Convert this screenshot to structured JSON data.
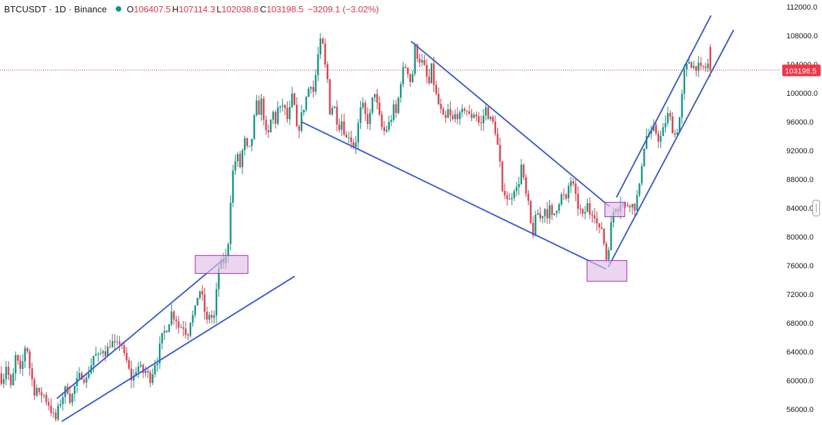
{
  "legend": {
    "symbol": "BTCUSDT",
    "interval": "1D",
    "exchange": "Binance",
    "title": "BTCUSDT · 1D · Binance",
    "open_label": "O",
    "open": "106407.5",
    "high_label": "H",
    "high": "107114.3",
    "low_label": "L",
    "low": "102038.8",
    "close_label": "C",
    "close": "103198.5",
    "change": "−3209.1 (−3.02%)"
  },
  "colors": {
    "up": "#089981",
    "down": "#f23645",
    "trendline": "#3a5bd9",
    "box_fill": "#e1bee7",
    "box_stroke": "#9c27b0",
    "grid": "#f0f3fa",
    "axis_text": "#131722",
    "price_label_bg": "#f23645"
  },
  "chart_data": {
    "type": "candlestick",
    "title": "BTCUSDT · 1D · Binance",
    "y_axis": {
      "position": "right",
      "ylim": [
        54000,
        113000
      ],
      "ticks": [
        "56000.0",
        "60000.0",
        "64000.0",
        "68000.0",
        "72000.0",
        "76000.0",
        "80000.0",
        "84000.0",
        "88000.0",
        "92000.0",
        "96000.0",
        "100000.0",
        "104000.0",
        "108000.0",
        "112000.0"
      ]
    },
    "last_price": "103198.5",
    "last_price_line": 103198.5,
    "grid": false,
    "price_path": [
      [
        0,
        61000
      ],
      [
        4,
        59500
      ],
      [
        8,
        62500
      ],
      [
        12,
        61000
      ],
      [
        15,
        58500
      ],
      [
        19,
        60500
      ],
      [
        23,
        63500
      ],
      [
        27,
        62000
      ],
      [
        31,
        60500
      ],
      [
        35,
        64500
      ],
      [
        39,
        65000
      ],
      [
        43,
        62000
      ],
      [
        46,
        60500
      ],
      [
        50,
        58500
      ],
      [
        54,
        59000
      ],
      [
        58,
        57500
      ],
      [
        62,
        58500
      ],
      [
        66,
        57500
      ],
      [
        70,
        57000
      ],
      [
        74,
        56000
      ],
      [
        78,
        55000
      ],
      [
        82,
        54500
      ],
      [
        86,
        56500
      ],
      [
        90,
        57500
      ],
      [
        94,
        58500
      ],
      [
        98,
        59000
      ],
      [
        102,
        57500
      ],
      [
        106,
        58000
      ],
      [
        110,
        59500
      ],
      [
        114,
        60000
      ],
      [
        118,
        61000
      ],
      [
        122,
        60500
      ],
      [
        126,
        60000
      ],
      [
        130,
        61500
      ],
      [
        134,
        62500
      ],
      [
        138,
        64000
      ],
      [
        142,
        63000
      ],
      [
        146,
        63500
      ],
      [
        150,
        64500
      ],
      [
        154,
        64000
      ],
      [
        158,
        64500
      ],
      [
        162,
        65500
      ],
      [
        166,
        65000
      ],
      [
        170,
        64500
      ],
      [
        174,
        65500
      ],
      [
        178,
        65000
      ],
      [
        182,
        63000
      ],
      [
        186,
        62500
      ],
      [
        190,
        60500
      ],
      [
        194,
        60000
      ],
      [
        198,
        61500
      ],
      [
        202,
        62000
      ],
      [
        206,
        61500
      ],
      [
        210,
        61000
      ],
      [
        214,
        61500
      ],
      [
        218,
        60000
      ],
      [
        222,
        61000
      ],
      [
        226,
        62500
      ],
      [
        230,
        63000
      ],
      [
        234,
        65000
      ],
      [
        238,
        66500
      ],
      [
        242,
        67000
      ],
      [
        246,
        68000
      ],
      [
        250,
        69500
      ],
      [
        254,
        69000
      ],
      [
        258,
        68500
      ],
      [
        262,
        67000
      ],
      [
        266,
        68000
      ],
      [
        270,
        67000
      ],
      [
        274,
        66500
      ],
      [
        278,
        68500
      ],
      [
        282,
        69000
      ],
      [
        286,
        70000
      ],
      [
        290,
        73000
      ],
      [
        294,
        72000
      ],
      [
        298,
        70000
      ],
      [
        302,
        68000
      ],
      [
        306,
        69500
      ],
      [
        310,
        68500
      ],
      [
        314,
        69000
      ],
      [
        318,
        75500
      ],
      [
        322,
        76000
      ],
      [
        326,
        76500
      ],
      [
        330,
        77000
      ],
      [
        334,
        80000
      ],
      [
        338,
        88000
      ],
      [
        342,
        90000
      ],
      [
        346,
        91500
      ],
      [
        350,
        89500
      ],
      [
        354,
        92000
      ],
      [
        358,
        93500
      ],
      [
        362,
        91500
      ],
      [
        366,
        92500
      ],
      [
        370,
        95500
      ],
      [
        374,
        98500
      ],
      [
        378,
        97500
      ],
      [
        382,
        99000
      ],
      [
        386,
        96000
      ],
      [
        390,
        93000
      ],
      [
        394,
        95500
      ],
      [
        398,
        97500
      ],
      [
        402,
        96000
      ],
      [
        406,
        98000
      ],
      [
        410,
        97500
      ],
      [
        414,
        99000
      ],
      [
        418,
        96000
      ],
      [
        422,
        97000
      ],
      [
        426,
        99500
      ],
      [
        430,
        98000
      ],
      [
        434,
        94000
      ],
      [
        438,
        96000
      ],
      [
        442,
        97500
      ],
      [
        446,
        99000
      ],
      [
        450,
        100500
      ],
      [
        454,
        101500
      ],
      [
        458,
        100000
      ],
      [
        462,
        103500
      ],
      [
        466,
        106500
      ],
      [
        470,
        107500
      ],
      [
        474,
        104000
      ],
      [
        478,
        102000
      ],
      [
        482,
        97000
      ],
      [
        486,
        98500
      ],
      [
        490,
        97500
      ],
      [
        494,
        95000
      ],
      [
        498,
        96500
      ],
      [
        502,
        95000
      ],
      [
        506,
        93500
      ],
      [
        510,
        94500
      ],
      [
        514,
        93000
      ],
      [
        518,
        92500
      ],
      [
        522,
        95000
      ],
      [
        526,
        97500
      ],
      [
        530,
        98000
      ],
      [
        534,
        96500
      ],
      [
        538,
        96000
      ],
      [
        542,
        97500
      ],
      [
        546,
        101000
      ],
      [
        550,
        98500
      ],
      [
        554,
        96500
      ],
      [
        558,
        95000
      ],
      [
        562,
        94500
      ],
      [
        566,
        95500
      ],
      [
        570,
        96000
      ],
      [
        574,
        98000
      ],
      [
        578,
        97000
      ],
      [
        582,
        99500
      ],
      [
        586,
        102500
      ],
      [
        590,
        103500
      ],
      [
        594,
        104000
      ],
      [
        598,
        101500
      ],
      [
        602,
        102500
      ],
      [
        606,
        106500
      ],
      [
        610,
        105000
      ],
      [
        614,
        104500
      ],
      [
        618,
        104000
      ],
      [
        622,
        102500
      ],
      [
        626,
        101000
      ],
      [
        630,
        103500
      ],
      [
        634,
        101000
      ],
      [
        638,
        99000
      ],
      [
        642,
        98000
      ],
      [
        646,
        96500
      ],
      [
        650,
        96000
      ],
      [
        654,
        97500
      ],
      [
        658,
        96500
      ],
      [
        662,
        96000
      ],
      [
        666,
        97500
      ],
      [
        670,
        96500
      ],
      [
        674,
        97000
      ],
      [
        678,
        98000
      ],
      [
        682,
        97500
      ],
      [
        686,
        96500
      ],
      [
        690,
        97000
      ],
      [
        694,
        97500
      ],
      [
        698,
        96000
      ],
      [
        702,
        95500
      ],
      [
        706,
        97000
      ],
      [
        710,
        98000
      ],
      [
        714,
        96500
      ],
      [
        718,
        96000
      ],
      [
        722,
        95500
      ],
      [
        726,
        93000
      ],
      [
        730,
        90000
      ],
      [
        734,
        85000
      ],
      [
        738,
        87000
      ],
      [
        742,
        84500
      ],
      [
        746,
        85500
      ],
      [
        750,
        87000
      ],
      [
        754,
        86500
      ],
      [
        758,
        88000
      ],
      [
        762,
        90500
      ],
      [
        766,
        86000
      ],
      [
        770,
        85500
      ],
      [
        774,
        82000
      ],
      [
        778,
        80500
      ],
      [
        782,
        82500
      ],
      [
        786,
        83500
      ],
      [
        790,
        82000
      ],
      [
        794,
        84500
      ],
      [
        798,
        83000
      ],
      [
        802,
        84000
      ],
      [
        806,
        82500
      ],
      [
        810,
        83500
      ],
      [
        814,
        84500
      ],
      [
        818,
        85500
      ],
      [
        822,
        86000
      ],
      [
        826,
        84500
      ],
      [
        830,
        87000
      ],
      [
        834,
        88000
      ],
      [
        838,
        86500
      ],
      [
        842,
        84500
      ],
      [
        846,
        84000
      ],
      [
        850,
        82500
      ],
      [
        854,
        83500
      ],
      [
        858,
        84500
      ],
      [
        862,
        83000
      ],
      [
        866,
        84000
      ],
      [
        870,
        82500
      ],
      [
        874,
        80500
      ],
      [
        878,
        81500
      ],
      [
        882,
        79000
      ],
      [
        886,
        76500
      ],
      [
        890,
        80000
      ],
      [
        894,
        83000
      ],
      [
        898,
        84500
      ],
      [
        902,
        84000
      ],
      [
        906,
        85000
      ],
      [
        910,
        84500
      ],
      [
        914,
        84000
      ],
      [
        918,
        85000
      ],
      [
        922,
        84500
      ],
      [
        926,
        84000
      ],
      [
        930,
        85500
      ],
      [
        934,
        87000
      ],
      [
        938,
        91500
      ],
      [
        942,
        93500
      ],
      [
        946,
        94500
      ],
      [
        950,
        94000
      ],
      [
        954,
        95000
      ],
      [
        958,
        94500
      ],
      [
        962,
        93500
      ],
      [
        966,
        94000
      ],
      [
        970,
        95500
      ],
      [
        974,
        97000
      ],
      [
        978,
        96500
      ],
      [
        982,
        95000
      ],
      [
        986,
        94000
      ],
      [
        990,
        95500
      ],
      [
        994,
        97500
      ],
      [
        998,
        102500
      ],
      [
        1002,
        103500
      ],
      [
        1006,
        104500
      ],
      [
        1010,
        104000
      ],
      [
        1014,
        103500
      ],
      [
        1018,
        104000
      ],
      [
        1022,
        103000
      ],
      [
        1026,
        103500
      ],
      [
        1030,
        103500
      ],
      [
        1034,
        104000
      ],
      [
        1038,
        106400
      ],
      [
        1040,
        103198.5
      ]
    ],
    "annotations": [
      {
        "type": "trendline",
        "from": [
          83,
          57500
        ],
        "to": [
          328,
          77000
        ]
      },
      {
        "type": "trendline",
        "from": [
          90,
          54300
        ],
        "to": [
          430,
          74500
        ]
      },
      {
        "type": "trendline",
        "from": [
          440,
          96000
        ],
        "to": [
          885,
          75500
        ]
      },
      {
        "type": "trendline",
        "from": [
          600,
          107200
        ],
        "to": [
          890,
          84200
        ]
      },
      {
        "type": "trendline",
        "from": [
          888,
          75800
        ],
        "to": [
          1071,
          108800
        ]
      },
      {
        "type": "trendline",
        "from": [
          900,
          85500
        ],
        "to": [
          1038,
          110800
        ]
      },
      {
        "type": "rectangle",
        "from": [
          285,
          77400
        ],
        "to": [
          362,
          74900
        ]
      },
      {
        "type": "rectangle",
        "from": [
          857,
          76700
        ],
        "to": [
          915,
          73800
        ]
      },
      {
        "type": "rectangle",
        "from": [
          883,
          84800
        ],
        "to": [
          912,
          82800
        ]
      }
    ]
  }
}
